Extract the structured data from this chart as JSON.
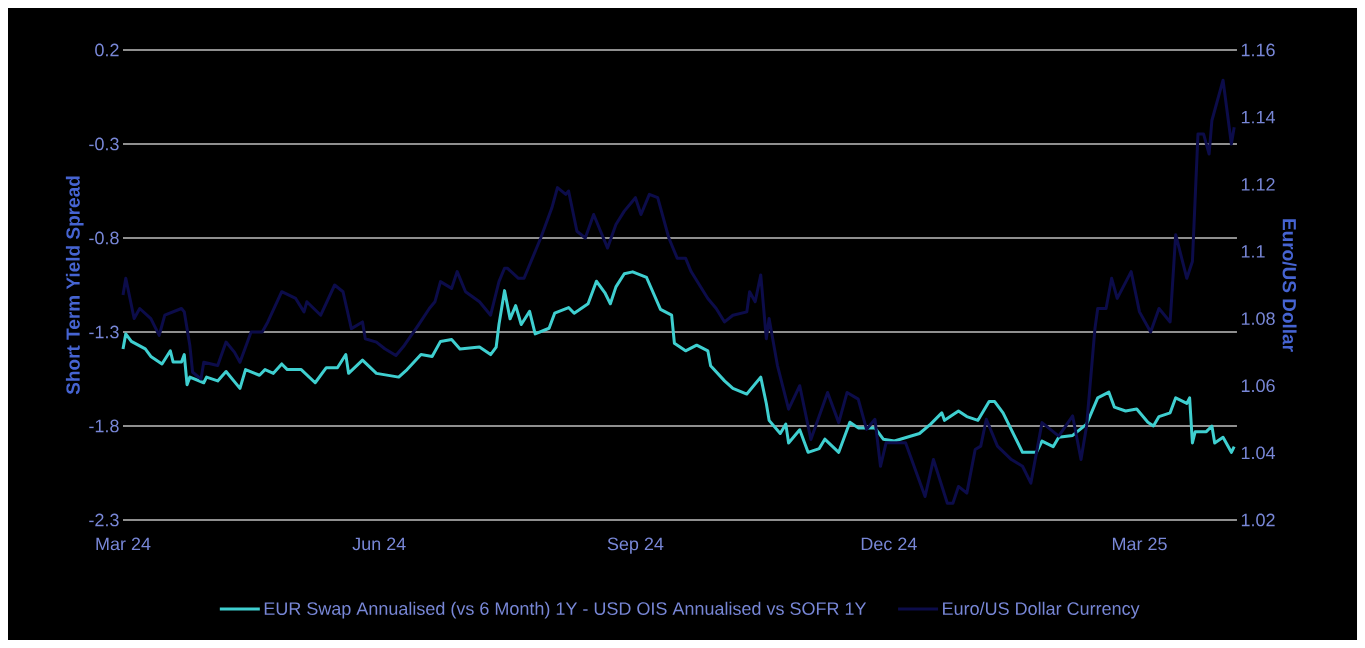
{
  "chart_data": {
    "type": "line",
    "ylabel": "Short Term Yield Spread",
    "y2label": "Euro/US Dollar",
    "xlim": [
      "2024-03-01",
      "2025-04-05"
    ],
    "xticks": [
      {
        "value": "2024-03-01",
        "label": "Mar 24"
      },
      {
        "value": "2024-06-01",
        "label": "Jun 24"
      },
      {
        "value": "2024-09-01",
        "label": "Sep 24"
      },
      {
        "value": "2024-12-01",
        "label": "Dec 24"
      },
      {
        "value": "2025-03-01",
        "label": "Mar 25"
      }
    ],
    "ylim": [
      -2.3,
      0.2
    ],
    "yticks": [
      -2.3,
      -1.8,
      -1.3,
      -0.8,
      -0.3,
      0.2
    ],
    "y2lim": [
      1.02,
      1.16
    ],
    "y2ticks": [
      1.02,
      1.04,
      1.06,
      1.08,
      1.1,
      1.12,
      1.14,
      1.16
    ],
    "grid": "y",
    "legend": "bottom",
    "series": [
      {
        "name": "EUR Swap Annualised (vs 6 Month) 1Y - USD OIS Annualised vs SOFR 1Y",
        "color": "#3fcfd0",
        "x": [
          "2024-03-01",
          "2024-03-02",
          "2024-03-04",
          "2024-03-09",
          "2024-03-11",
          "2024-03-15",
          "2024-03-18",
          "2024-03-19",
          "2024-03-22",
          "2024-03-23",
          "2024-03-24",
          "2024-03-25",
          "2024-03-30",
          "2024-03-31",
          "2024-04-04",
          "2024-04-07",
          "2024-04-12",
          "2024-04-14",
          "2024-04-19",
          "2024-04-21",
          "2024-04-24",
          "2024-04-27",
          "2024-04-29",
          "2024-05-04",
          "2024-05-09",
          "2024-05-13",
          "2024-05-17",
          "2024-05-20",
          "2024-05-21",
          "2024-05-26",
          "2024-05-31",
          "2024-06-08",
          "2024-06-11",
          "2024-06-16",
          "2024-06-20",
          "2024-06-23",
          "2024-06-27",
          "2024-06-30",
          "2024-07-07",
          "2024-07-11",
          "2024-07-13",
          "2024-07-14",
          "2024-07-16",
          "2024-07-18",
          "2024-07-20",
          "2024-07-22",
          "2024-07-25",
          "2024-07-27",
          "2024-08-01",
          "2024-08-03",
          "2024-08-08",
          "2024-08-10",
          "2024-08-15",
          "2024-08-18",
          "2024-08-21",
          "2024-08-23",
          "2024-08-25",
          "2024-08-28",
          "2024-08-31",
          "2024-09-05",
          "2024-09-10",
          "2024-09-14",
          "2024-09-15",
          "2024-09-19",
          "2024-09-23",
          "2024-09-27",
          "2024-09-28",
          "2024-10-03",
          "2024-10-06",
          "2024-10-11",
          "2024-10-16",
          "2024-10-18",
          "2024-10-19",
          "2024-10-23",
          "2024-10-25",
          "2024-10-26",
          "2024-10-30",
          "2024-11-02",
          "2024-11-06",
          "2024-11-08",
          "2024-11-13",
          "2024-11-17",
          "2024-11-20",
          "2024-11-26",
          "2024-11-29",
          "2024-12-03",
          "2024-12-12",
          "2024-12-16",
          "2024-12-20",
          "2024-12-21",
          "2024-12-26",
          "2024-12-29",
          "2025-01-02",
          "2025-01-06",
          "2025-01-08",
          "2025-01-11",
          "2025-01-16",
          "2025-01-18",
          "2025-01-23",
          "2025-01-25",
          "2025-01-29",
          "2025-01-31",
          "2025-02-05",
          "2025-02-10",
          "2025-02-14",
          "2025-02-18",
          "2025-02-20",
          "2025-02-24",
          "2025-02-28",
          "2025-03-04",
          "2025-03-06",
          "2025-03-08",
          "2025-03-12",
          "2025-03-14",
          "2025-03-18",
          "2025-03-19",
          "2025-03-20",
          "2025-03-21",
          "2025-03-25",
          "2025-03-27",
          "2025-03-28",
          "2025-03-31",
          "2025-04-03",
          "2025-04-04"
        ],
        "values": [
          -1.39,
          -1.31,
          -1.35,
          -1.39,
          -1.43,
          -1.47,
          -1.4,
          -1.46,
          -1.46,
          -1.42,
          -1.58,
          -1.54,
          -1.57,
          -1.54,
          -1.56,
          -1.51,
          -1.6,
          -1.5,
          -1.53,
          -1.5,
          -1.52,
          -1.47,
          -1.5,
          -1.5,
          -1.57,
          -1.49,
          -1.49,
          -1.42,
          -1.52,
          -1.45,
          -1.52,
          -1.54,
          -1.5,
          -1.42,
          -1.43,
          -1.35,
          -1.34,
          -1.39,
          -1.38,
          -1.42,
          -1.38,
          -1.26,
          -1.08,
          -1.23,
          -1.16,
          -1.26,
          -1.19,
          -1.31,
          -1.28,
          -1.2,
          -1.17,
          -1.2,
          -1.15,
          -1.03,
          -1.09,
          -1.15,
          -1.06,
          -0.99,
          -0.98,
          -1.01,
          -1.18,
          -1.21,
          -1.36,
          -1.4,
          -1.37,
          -1.4,
          -1.48,
          -1.56,
          -1.6,
          -1.63,
          -1.54,
          -1.68,
          -1.77,
          -1.84,
          -1.79,
          -1.89,
          -1.82,
          -1.94,
          -1.92,
          -1.87,
          -1.94,
          -1.78,
          -1.81,
          -1.81,
          -1.87,
          -1.88,
          -1.84,
          -1.79,
          -1.73,
          -1.77,
          -1.72,
          -1.75,
          -1.77,
          -1.67,
          -1.67,
          -1.73,
          -1.88,
          -1.94,
          -1.94,
          -1.88,
          -1.91,
          -1.86,
          -1.85,
          -1.79,
          -1.65,
          -1.62,
          -1.7,
          -1.72,
          -1.71,
          -1.78,
          -1.8,
          -1.75,
          -1.73,
          -1.65,
          -1.68,
          -1.65,
          -1.89,
          -1.83,
          -1.83,
          -1.8,
          -1.89,
          -1.86,
          -1.94,
          -1.91
        ]
      },
      {
        "name": "Euro/US Dollar Currency",
        "color": "#0c0c4a",
        "axis": "y2",
        "x": [
          "2024-03-01",
          "2024-03-02",
          "2024-03-05",
          "2024-03-07",
          "2024-03-11",
          "2024-03-14",
          "2024-03-16",
          "2024-03-22",
          "2024-03-23",
          "2024-03-25",
          "2024-03-26",
          "2024-03-29",
          "2024-03-30",
          "2024-04-04",
          "2024-04-07",
          "2024-04-10",
          "2024-04-12",
          "2024-04-16",
          "2024-04-20",
          "2024-04-22",
          "2024-04-27",
          "2024-05-02",
          "2024-05-05",
          "2024-05-06",
          "2024-05-11",
          "2024-05-16",
          "2024-05-19",
          "2024-05-22",
          "2024-05-26",
          "2024-05-27",
          "2024-05-31",
          "2024-06-03",
          "2024-06-07",
          "2024-06-10",
          "2024-06-15",
          "2024-06-19",
          "2024-06-21",
          "2024-06-23",
          "2024-06-27",
          "2024-06-29",
          "2024-07-02",
          "2024-07-07",
          "2024-07-11",
          "2024-07-14",
          "2024-07-16",
          "2024-07-17",
          "2024-07-21",
          "2024-07-23",
          "2024-07-26",
          "2024-07-29",
          "2024-08-02",
          "2024-08-04",
          "2024-08-07",
          "2024-08-08",
          "2024-08-11",
          "2024-08-14",
          "2024-08-17",
          "2024-08-22",
          "2024-08-25",
          "2024-08-28",
          "2024-09-01",
          "2024-09-03",
          "2024-09-06",
          "2024-09-09",
          "2024-09-13",
          "2024-09-16",
          "2024-09-19",
          "2024-09-21",
          "2024-09-27",
          "2024-09-30",
          "2024-10-03",
          "2024-10-06",
          "2024-10-11",
          "2024-10-12",
          "2024-10-14",
          "2024-10-16",
          "2024-10-18",
          "2024-10-19",
          "2024-10-22",
          "2024-10-26",
          "2024-10-30",
          "2024-11-03",
          "2024-11-09",
          "2024-11-13",
          "2024-11-16",
          "2024-11-20",
          "2024-11-23",
          "2024-11-26",
          "2024-11-28",
          "2024-11-30",
          "2024-12-07",
          "2024-12-14",
          "2024-12-17",
          "2024-12-22",
          "2024-12-24",
          "2024-12-26",
          "2024-12-29",
          "2025-01-01",
          "2025-01-03",
          "2025-01-05",
          "2025-01-09",
          "2025-01-14",
          "2025-01-18",
          "2025-01-21",
          "2025-01-25",
          "2025-01-31",
          "2025-02-05",
          "2025-02-08",
          "2025-02-10",
          "2025-02-13",
          "2025-02-14",
          "2025-02-17",
          "2025-02-19",
          "2025-02-21",
          "2025-02-26",
          "2025-03-01",
          "2025-03-05",
          "2025-03-08",
          "2025-03-12",
          "2025-03-14",
          "2025-03-18",
          "2025-03-20",
          "2025-03-22",
          "2025-03-24",
          "2025-03-26",
          "2025-03-27",
          "2025-03-31",
          "2025-04-03",
          "2025-04-04"
        ],
        "values": [
          1.087,
          1.092,
          1.08,
          1.083,
          1.08,
          1.075,
          1.081,
          1.083,
          1.082,
          1.072,
          1.064,
          1.062,
          1.067,
          1.066,
          1.073,
          1.07,
          1.067,
          1.076,
          1.076,
          1.079,
          1.088,
          1.086,
          1.082,
          1.085,
          1.081,
          1.09,
          1.088,
          1.077,
          1.079,
          1.074,
          1.073,
          1.071,
          1.069,
          1.072,
          1.078,
          1.083,
          1.085,
          1.091,
          1.089,
          1.094,
          1.088,
          1.085,
          1.081,
          1.091,
          1.095,
          1.095,
          1.092,
          1.092,
          1.098,
          1.104,
          1.113,
          1.119,
          1.117,
          1.118,
          1.106,
          1.104,
          1.111,
          1.101,
          1.108,
          1.112,
          1.116,
          1.111,
          1.117,
          1.116,
          1.104,
          1.098,
          1.098,
          1.094,
          1.086,
          1.083,
          1.079,
          1.081,
          1.082,
          1.088,
          1.085,
          1.093,
          1.074,
          1.08,
          1.066,
          1.053,
          1.06,
          1.044,
          1.058,
          1.049,
          1.058,
          1.056,
          1.047,
          1.05,
          1.036,
          1.043,
          1.043,
          1.027,
          1.038,
          1.025,
          1.025,
          1.03,
          1.028,
          1.041,
          1.042,
          1.05,
          1.042,
          1.038,
          1.036,
          1.031,
          1.049,
          1.045,
          1.051,
          1.038,
          1.048,
          1.077,
          1.083,
          1.083,
          1.092,
          1.086,
          1.094,
          1.082,
          1.076,
          1.083,
          1.079,
          1.105,
          1.092,
          1.097,
          1.135,
          1.135,
          1.129,
          1.139,
          1.151,
          1.132,
          1.137
        ]
      }
    ]
  }
}
